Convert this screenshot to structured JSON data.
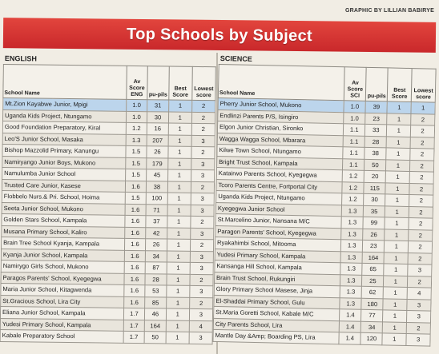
{
  "header": {
    "graphic_credit": "GRAPHIC BY LILLIAN BABIRYE",
    "title": "Top Schools by Subject"
  },
  "english": {
    "section_title": "ENGLISH",
    "columns": {
      "name": "School Name",
      "av": "Av Score ENG",
      "pupils": "pu-pils",
      "best": "Best Score",
      "lowest": "Lowest score"
    },
    "rows": [
      {
        "name": "Mt.Zion Kayabwe Junior, Mpigi",
        "av": "1.0",
        "pupils": "31",
        "best": "1",
        "lowest": "2"
      },
      {
        "name": "Uganda Kids Project, Ntungamo",
        "av": "1.0",
        "pupils": "30",
        "best": "1",
        "lowest": "2"
      },
      {
        "name": "Good Foundation Preparatory, Kiral",
        "av": "1.2",
        "pupils": "16",
        "best": "1",
        "lowest": "2"
      },
      {
        "name": "Leo'S Junior School, Masaka",
        "av": "1.3",
        "pupils": "207",
        "best": "1",
        "lowest": "3"
      },
      {
        "name": "Bishop Mazzolid Primary, Kanungu",
        "av": "1.5",
        "pupils": "26",
        "best": "1",
        "lowest": "2"
      },
      {
        "name": "Namiryango Junior Boys, Mukono",
        "av": "1.5",
        "pupils": "179",
        "best": "1",
        "lowest": "3"
      },
      {
        "name": "Namulumba Junior School",
        "av": "1.5",
        "pupils": "45",
        "best": "1",
        "lowest": "3"
      },
      {
        "name": "Trusted Care Junior, Kasese",
        "av": "1.6",
        "pupils": "38",
        "best": "1",
        "lowest": "2"
      },
      {
        "name": "Flobbelo Nurs.& Pri. School, Hoima",
        "av": "1.5",
        "pupils": "100",
        "best": "1",
        "lowest": "3"
      },
      {
        "name": "Seeta Junior School, Mukono",
        "av": "1.6",
        "pupils": "71",
        "best": "1",
        "lowest": "3"
      },
      {
        "name": "Golden Stars School, Kampala",
        "av": "1.6",
        "pupils": "37",
        "best": "1",
        "lowest": "2"
      },
      {
        "name": "Musana Primary School, Kaliro",
        "av": "1.6",
        "pupils": "42",
        "best": "1",
        "lowest": "3"
      },
      {
        "name": "Brain Tree School Kyanja, Kampala",
        "av": "1.6",
        "pupils": "26",
        "best": "1",
        "lowest": "2"
      },
      {
        "name": "Kyanja Junior School, Kampala",
        "av": "1.6",
        "pupils": "34",
        "best": "1",
        "lowest": "3"
      },
      {
        "name": "Namirygo Girls School, Mukono",
        "av": "1.6",
        "pupils": "87",
        "best": "1",
        "lowest": "3"
      },
      {
        "name": "Paragos Parents' School, Kyegegwa",
        "av": "1.6",
        "pupils": "28",
        "best": "1",
        "lowest": "2"
      },
      {
        "name": "Maria Junior School, Kitagwenda",
        "av": "1.6",
        "pupils": "53",
        "best": "1",
        "lowest": "3"
      },
      {
        "name": "St.Gracious School, Lira City",
        "av": "1.6",
        "pupils": "85",
        "best": "1",
        "lowest": "2"
      },
      {
        "name": "Eliana Junior School, Kampala",
        "av": "1.7",
        "pupils": "46",
        "best": "1",
        "lowest": "3"
      },
      {
        "name": "Yudesi Primary School, Kampala",
        "av": "1.7",
        "pupils": "164",
        "best": "1",
        "lowest": "4"
      },
      {
        "name": "Kabale Preparatory School",
        "av": "1.7",
        "pupils": "50",
        "best": "1",
        "lowest": "3"
      }
    ]
  },
  "science": {
    "section_title": "SCIENCE",
    "columns": {
      "name": "School Name",
      "av": "Av Score SCI",
      "pupils": "pu-pils",
      "best": "Best Score",
      "lowest": "Lowest score"
    },
    "rows": [
      {
        "name": "Pherry Junior School, Mukono",
        "av": "1.0",
        "pupils": "39",
        "best": "1",
        "lowest": "1"
      },
      {
        "name": "Endlinzi Parents P/S, Isingiro",
        "av": "1.0",
        "pupils": "23",
        "best": "1",
        "lowest": "2"
      },
      {
        "name": "Elgon Junior Christian, Sironko",
        "av": "1.1",
        "pupils": "33",
        "best": "1",
        "lowest": "2"
      },
      {
        "name": "Wagga Wagga School, Mbarara",
        "av": "1.1",
        "pupils": "28",
        "best": "1",
        "lowest": "2"
      },
      {
        "name": "Kilwe Town School, Ntungamo",
        "av": "1.1",
        "pupils": "38",
        "best": "1",
        "lowest": "2"
      },
      {
        "name": "Bright Trust School, Kampala",
        "av": "1.1",
        "pupils": "50",
        "best": "1",
        "lowest": "2"
      },
      {
        "name": "Katairwo Parents School, Kyegegwa",
        "av": "1.2",
        "pupils": "20",
        "best": "1",
        "lowest": "2"
      },
      {
        "name": "Tcoro Parents Centre, Fortportal City",
        "av": "1.2",
        "pupils": "115",
        "best": "1",
        "lowest": "2"
      },
      {
        "name": "Uganda Kids Project, Ntungamo",
        "av": "1.2",
        "pupils": "30",
        "best": "1",
        "lowest": "2"
      },
      {
        "name": "Kyegegwa Junior School",
        "av": "1.3",
        "pupils": "35",
        "best": "1",
        "lowest": "2"
      },
      {
        "name": "St.Marcelino Junior, Nansana M/C",
        "av": "1.3",
        "pupils": "99",
        "best": "1",
        "lowest": "2"
      },
      {
        "name": "Paragon Parents' School, Kyegegwa",
        "av": "1.3",
        "pupils": "26",
        "best": "1",
        "lowest": "2"
      },
      {
        "name": "Ryakahimbi School, Mitooma",
        "av": "1.3",
        "pupils": "23",
        "best": "1",
        "lowest": "2"
      },
      {
        "name": "Yudesi Primary School, Kampala",
        "av": "1.3",
        "pupils": "164",
        "best": "1",
        "lowest": "2"
      },
      {
        "name": "Kansanga Hill School, Kampala",
        "av": "1.3",
        "pupils": "65",
        "best": "1",
        "lowest": "3"
      },
      {
        "name": "Brain Trust School, Rukungiri",
        "av": "1.3",
        "pupils": "25",
        "best": "1",
        "lowest": "2"
      },
      {
        "name": "Glory Primary School Masese, Jinja",
        "av": "1.3",
        "pupils": "62",
        "best": "1",
        "lowest": "4"
      },
      {
        "name": "El-Shaddai Primary School, Gulu",
        "av": "1.3",
        "pupils": "180",
        "best": "1",
        "lowest": "3"
      },
      {
        "name": "St.Maria Goretti School, Kabale M/C",
        "av": "1.4",
        "pupils": "77",
        "best": "1",
        "lowest": "3"
      },
      {
        "name": "City Parents School, Lira",
        "av": "1.4",
        "pupils": "34",
        "best": "1",
        "lowest": "2"
      },
      {
        "name": "Mantle Day &Amp; Boarding PS, Lira",
        "av": "1.4",
        "pupils": "120",
        "best": "1",
        "lowest": "3"
      }
    ]
  }
}
